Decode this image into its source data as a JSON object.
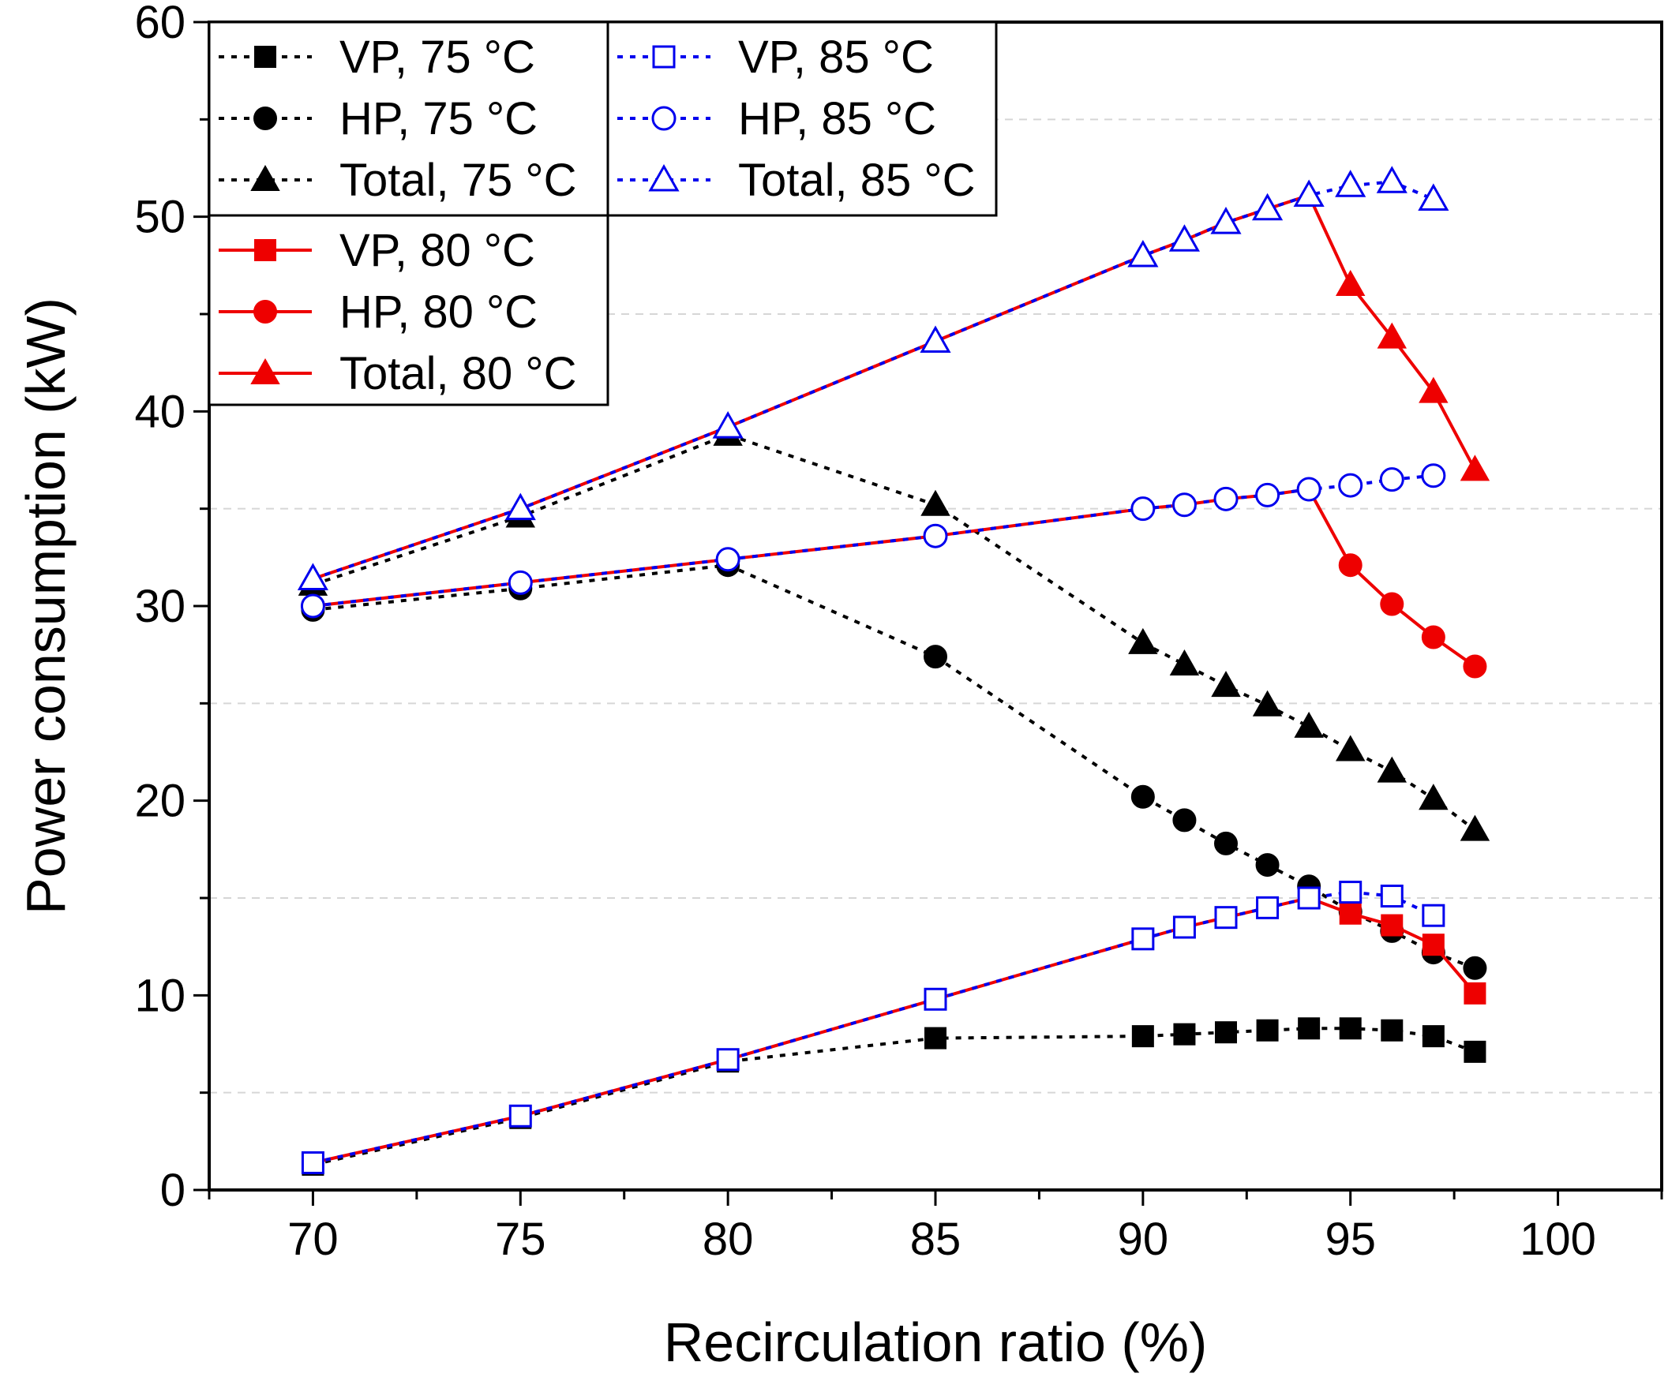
{
  "chart_data": {
    "type": "line",
    "title": "",
    "xlabel": "Recirculation ratio (%)",
    "ylabel": "Power consumption (kW)",
    "xlim": [
      67.5,
      102.5
    ],
    "ylim": [
      0,
      60
    ],
    "xticks": [
      70,
      75,
      80,
      85,
      90,
      95,
      100
    ],
    "yticks": [
      0,
      10,
      20,
      30,
      40,
      50,
      60
    ],
    "grid": "horizontal dashed at 5, 15, 25, 35, 45, 55",
    "series": [
      {
        "name": "VP, 75 °C",
        "color": "#000000",
        "dash": "dotted",
        "marker": "square",
        "filled": true,
        "x": [
          70,
          75,
          80,
          85,
          90,
          91,
          92,
          93,
          94,
          95,
          96,
          97,
          98
        ],
        "y": [
          1.3,
          3.7,
          6.6,
          7.8,
          7.9,
          8.0,
          8.1,
          8.2,
          8.3,
          8.3,
          8.2,
          7.9,
          7.1
        ]
      },
      {
        "name": "HP, 75 °C",
        "color": "#000000",
        "dash": "dotted",
        "marker": "circle",
        "filled": true,
        "x": [
          70,
          75,
          80,
          85,
          90,
          91,
          92,
          93,
          94,
          95,
          96,
          97,
          98
        ],
        "y": [
          29.8,
          30.9,
          32.1,
          27.4,
          20.2,
          19.0,
          17.8,
          16.7,
          15.6,
          14.3,
          13.3,
          12.2,
          11.4
        ]
      },
      {
        "name": "Total, 75 °C",
        "color": "#000000",
        "dash": "dotted",
        "marker": "triangle",
        "filled": true,
        "x": [
          70,
          75,
          80,
          85,
          90,
          91,
          92,
          93,
          94,
          95,
          96,
          97,
          98
        ],
        "y": [
          31.1,
          34.6,
          38.8,
          35.2,
          28.1,
          27.0,
          25.9,
          24.9,
          23.8,
          22.6,
          21.5,
          20.1,
          18.5
        ]
      },
      {
        "name": "VP, 85 °C",
        "color": "#0000ee",
        "dash": "dotted",
        "marker": "square",
        "filled": false,
        "x": [
          70,
          75,
          80,
          85,
          90,
          91,
          92,
          93,
          94,
          95,
          96,
          97
        ],
        "y": [
          1.4,
          3.8,
          6.7,
          9.8,
          12.9,
          13.5,
          14.0,
          14.5,
          15.0,
          15.3,
          15.1,
          14.1
        ]
      },
      {
        "name": "HP, 85 °C",
        "color": "#0000ee",
        "dash": "dotted",
        "marker": "circle",
        "filled": false,
        "x": [
          70,
          75,
          80,
          85,
          90,
          91,
          92,
          93,
          94,
          95,
          96,
          97
        ],
        "y": [
          30.0,
          31.2,
          32.4,
          33.6,
          35.0,
          35.2,
          35.5,
          35.7,
          36.0,
          36.2,
          36.5,
          36.7
        ]
      },
      {
        "name": "Total, 85 °C",
        "color": "#0000ee",
        "dash": "dotted",
        "marker": "triangle",
        "filled": false,
        "x": [
          70,
          75,
          80,
          85,
          90,
          91,
          92,
          93,
          94,
          95,
          96,
          97
        ],
        "y": [
          31.4,
          35.0,
          39.2,
          43.6,
          48.0,
          48.8,
          49.7,
          50.4,
          51.1,
          51.6,
          51.8,
          50.9
        ]
      },
      {
        "name": "VP, 80 °C",
        "color": "#ee0000",
        "dash": "solid",
        "marker": "square",
        "filled": true,
        "x": [
          70,
          75,
          80,
          85,
          90,
          91,
          92,
          93,
          94,
          95,
          96,
          97,
          98
        ],
        "y": [
          1.4,
          3.8,
          6.7,
          9.8,
          12.9,
          13.5,
          14.0,
          14.5,
          15.0,
          14.2,
          13.6,
          12.6,
          10.1
        ]
      },
      {
        "name": "HP, 80 °C",
        "color": "#ee0000",
        "dash": "solid",
        "marker": "circle",
        "filled": true,
        "x": [
          70,
          75,
          80,
          85,
          90,
          91,
          92,
          93,
          94,
          95,
          96,
          97,
          98
        ],
        "y": [
          30.0,
          31.2,
          32.4,
          33.6,
          35.0,
          35.2,
          35.5,
          35.7,
          36.0,
          32.1,
          30.1,
          28.4,
          26.9
        ]
      },
      {
        "name": "Total, 80 °C",
        "color": "#ee0000",
        "dash": "solid",
        "marker": "triangle",
        "filled": true,
        "x": [
          70,
          75,
          80,
          85,
          90,
          91,
          92,
          93,
          94,
          95,
          96,
          97,
          98
        ],
        "y": [
          31.4,
          35.0,
          39.2,
          43.6,
          48.0,
          48.8,
          49.7,
          50.4,
          51.1,
          46.5,
          43.8,
          41.0,
          37.0
        ]
      }
    ],
    "legend_groups": [
      {
        "placement": "top-left",
        "entries": [
          "VP, 75 °C",
          "HP, 75 °C",
          "Total, 75 °C"
        ]
      },
      {
        "placement": "top-center",
        "entries": [
          "VP, 85 °C",
          "HP, 85 °C",
          "Total, 85 °C"
        ]
      },
      {
        "placement": "upper-left",
        "entries": [
          "VP, 80 °C",
          "HP, 80 °C",
          "Total, 80 °C"
        ]
      }
    ],
    "draw_order": [
      "VP, 75 °C",
      "HP, 75 °C",
      "Total, 75 °C",
      "VP, 80 °C",
      "HP, 80 °C",
      "Total, 80 °C",
      "VP, 85 °C",
      "HP, 85 °C",
      "Total, 85 °C"
    ]
  }
}
